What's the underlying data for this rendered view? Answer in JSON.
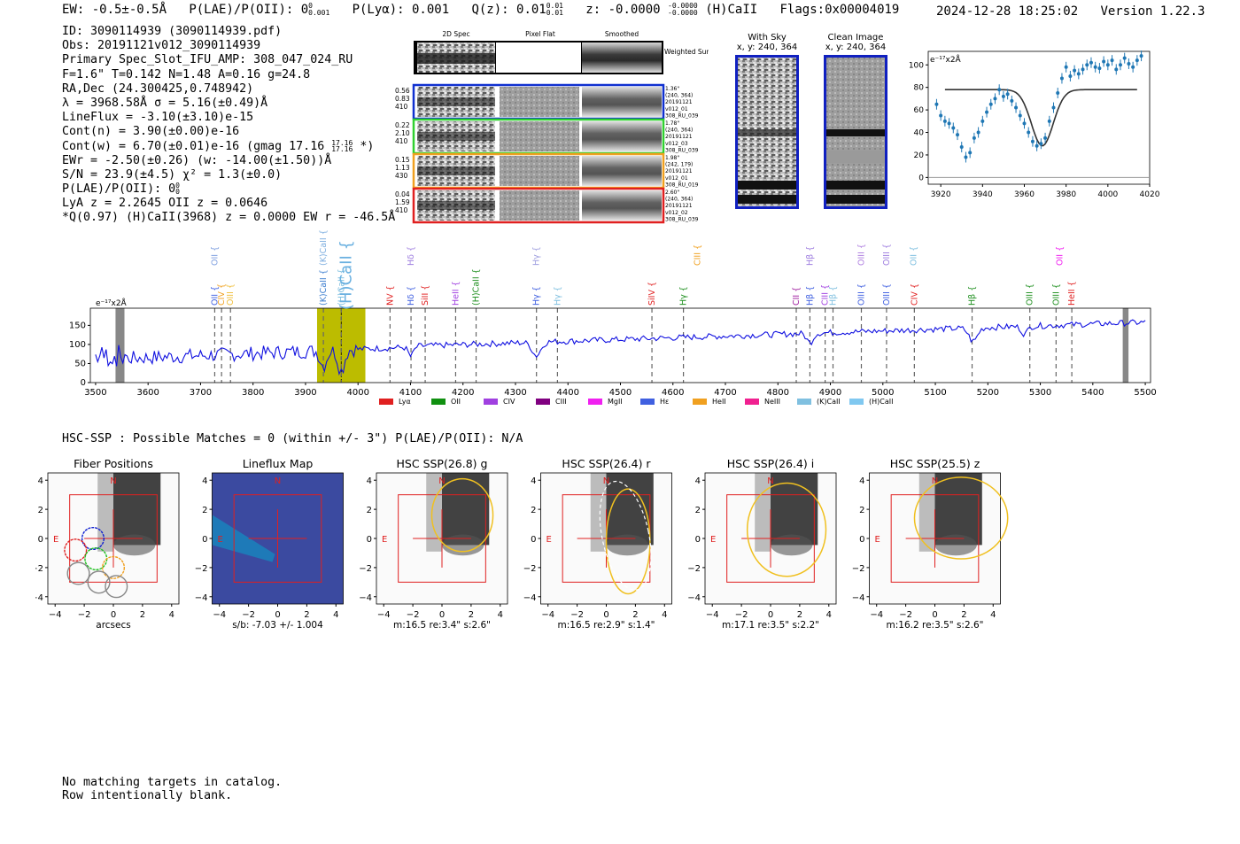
{
  "header": {
    "ew": "EW: -0.5±-0.5Å",
    "plae": "P(LAE)/P(OII): 0",
    "plae_sup": "0",
    "plae_sub": "0.001",
    "plya": "P(Lyα): 0.001",
    "qz": "Q(z): 0.01",
    "qz_sup": "0.01",
    "qz_sub": "0.01",
    "z": "z: -0.0000",
    "z_sup": "-0.0000",
    "z_sub": "-0.0000",
    "line": "(H)CaII",
    "flags": "Flags:0x00004019",
    "timestamp": "2024-12-28 18:25:02",
    "version": "Version 1.22.3"
  },
  "info": {
    "id": "ID: 3090114939 (3090114939.pdf)",
    "obs": "Obs: 20191121v012_3090114939",
    "spec": "Primary Spec_Slot_IFU_AMP: 308_047_024_RU",
    "fit": "F=1.6\"  T=0.142  N=1.48  A=0.16  g=24.8",
    "radec": "RA,Dec (24.300425,0.748942)",
    "lambda": "λ = 3968.58Å  σ = 5.16(±0.49)Å",
    "lineflux": "LineFlux = -3.10(±3.10)e-15",
    "contn": "Cont(n) = 3.90(±0.00)e-16",
    "contw": "Cont(w) = 6.70(±0.01)e-16 (gmag 17.16",
    "contw_sup": "17.16",
    "contw_sub": "17.16",
    "contw_end": "*)",
    "ewr": "EWr = -2.50(±0.26) (w: -14.00(±1.50))Å",
    "sn": "S/N = 23.9(±4.5)  χ² = 1.3(±0.0)",
    "plae": "P(LAE)/P(OII): 0",
    "plae_sup": "0",
    "plae_sub": "0",
    "lya": "LyA z = 2.2645  OII z = 0.0646",
    "q": "*Q(0.97) (H)CaII(3968) z = 0.0000  EW r = -46.5Å"
  },
  "stamps": {
    "col_titles": [
      "2D Spec",
      "Pixel Flat",
      "Smoothed"
    ],
    "weighted": "Weighted Sum",
    "rows": [
      {
        "left": [
          "0.56",
          "0.83",
          "410"
        ],
        "right": [
          "1.36\"",
          "(240, 364)",
          "20191121",
          "v012_01",
          "308_RU_039"
        ],
        "color": "#1030d0"
      },
      {
        "left": [
          "0.22",
          "2.10",
          "410"
        ],
        "right": [
          "1.78\"",
          "(240, 364)",
          "20191121",
          "v012_03",
          "308_RU_039"
        ],
        "color": "#30d030"
      },
      {
        "left": [
          "0.15",
          "1.13",
          "430"
        ],
        "right": [
          "1.98\"",
          "(242, 179)",
          "20191121",
          "v012_01",
          "308_RU_019"
        ],
        "color": "#f0a020"
      },
      {
        "left": [
          "0.04",
          "1.59",
          "410"
        ],
        "right": [
          "2.60\"",
          "(240, 364)",
          "20191121",
          "v012_02",
          "308_RU_039"
        ],
        "color": "#e02020"
      }
    ]
  },
  "cutouts": {
    "with_sky": "With Sky",
    "with_sky_xy": "x, y: 240, 364",
    "clean": "Clean Image",
    "clean_xy": "x, y: 240, 364"
  },
  "line_fit_chart": {
    "type": "scatter",
    "units_label": "e⁻¹⁷x2Å",
    "x": [
      3918,
      3920,
      3922,
      3924,
      3926,
      3928,
      3930,
      3932,
      3934,
      3936,
      3938,
      3940,
      3942,
      3944,
      3946,
      3948,
      3950,
      3952,
      3954,
      3956,
      3958,
      3960,
      3962,
      3964,
      3966,
      3968,
      3970,
      3972,
      3974,
      3976,
      3978,
      3980,
      3982,
      3984,
      3986,
      3988,
      3990,
      3992,
      3994,
      3996,
      3998,
      4000,
      4002,
      4004,
      4006,
      4008,
      4010,
      4012,
      4014,
      4016
    ],
    "y": [
      65,
      55,
      50,
      48,
      44,
      38,
      27,
      18,
      22,
      35,
      40,
      50,
      58,
      65,
      70,
      78,
      72,
      74,
      68,
      62,
      55,
      48,
      40,
      32,
      28,
      30,
      35,
      50,
      62,
      75,
      88,
      98,
      90,
      95,
      92,
      96,
      100,
      102,
      98,
      97,
      103,
      100,
      104,
      96,
      100,
      106,
      101,
      98,
      104,
      108
    ],
    "model": "gaussian",
    "xticks": [
      "3920",
      "3940",
      "3960",
      "3980",
      "4000",
      "4020"
    ],
    "yticks": [
      "0",
      "20",
      "40",
      "60",
      "80",
      "100"
    ],
    "xlim": [
      3914,
      4020
    ],
    "ylim": [
      -6,
      112
    ]
  },
  "spectrum_chart": {
    "type": "line",
    "units_label": "e⁻¹⁷x2Å",
    "xticks": [
      "3500",
      "3600",
      "3700",
      "3800",
      "3900",
      "4000",
      "4100",
      "4200",
      "4300",
      "4400",
      "4500",
      "4600",
      "4700",
      "4800",
      "4900",
      "5000",
      "5100",
      "5200",
      "5300",
      "5400",
      "5500"
    ],
    "yticks": [
      "0",
      "50",
      "100",
      "150"
    ],
    "xlim": [
      3490,
      5510
    ],
    "ylim": [
      0,
      195
    ],
    "highlight_range": [
      3922,
      4014
    ],
    "lines_top": [
      {
        "label": "OII",
        "x": 3727,
        "color": "#80a0e0"
      },
      {
        "label": "Hδ",
        "x": 4101,
        "color": "#a080e0"
      },
      {
        "label": "(K)CaII",
        "x": 3934,
        "color": "#80b0e0"
      },
      {
        "label": "(H)CaII",
        "x": 3968,
        "color": "#6ab0e0",
        "big": true
      },
      {
        "label": "Hγ",
        "x": 4340,
        "color": "#a0a0e0"
      },
      {
        "label": "CIII",
        "x": 4647,
        "color": "#f0a020"
      },
      {
        "label": "Hβ",
        "x": 4861,
        "color": "#a080e0"
      },
      {
        "label": "OIII",
        "x": 4959,
        "color": "#b080e0"
      },
      {
        "label": "OIII",
        "x": 5007,
        "color": "#a080e0"
      },
      {
        "label": "OII",
        "x": 5059,
        "color": "#80c0e0"
      },
      {
        "label": "OII",
        "x": 5337,
        "color": "#f020f0"
      }
    ],
    "lines_mid": [
      {
        "label": "OII",
        "x": 3727,
        "color": "#4060e0"
      },
      {
        "label": "CIV",
        "x": 3740,
        "color": "#f0a020"
      },
      {
        "label": "OIII",
        "x": 3757,
        "color": "#f0c040"
      },
      {
        "label": "(K)CaII",
        "x": 3934,
        "color": "#4080d0"
      },
      {
        "label": "(H)CaII",
        "x": 3968,
        "color": "#80c0e0"
      },
      {
        "label": "NV",
        "x": 4061,
        "color": "#e02020"
      },
      {
        "label": "Hδ",
        "x": 4101,
        "color": "#4060e0"
      },
      {
        "label": "SiII",
        "x": 4128,
        "color": "#e02020"
      },
      {
        "label": "HeII",
        "x": 4186,
        "color": "#a040e0"
      },
      {
        "label": "(H)CaII",
        "x": 4225,
        "color": "#209020"
      },
      {
        "label": "Hγ",
        "x": 4340,
        "color": "#4060e0"
      },
      {
        "label": "Hγ",
        "x": 4380,
        "color": "#80c0e0"
      },
      {
        "label": "SiIV",
        "x": 4560,
        "color": "#e02020"
      },
      {
        "label": "Hγ",
        "x": 4620,
        "color": "#209020"
      },
      {
        "label": "CII",
        "x": 4835,
        "color": "#a020a0"
      },
      {
        "label": "Hβ",
        "x": 4861,
        "color": "#4060e0"
      },
      {
        "label": "CIII",
        "x": 4890,
        "color": "#a040e0"
      },
      {
        "label": "Hβ",
        "x": 4905,
        "color": "#80c0e0"
      },
      {
        "label": "OIII",
        "x": 4959,
        "color": "#4060e0"
      },
      {
        "label": "OIII",
        "x": 5007,
        "color": "#4060e0"
      },
      {
        "label": "CIV",
        "x": 5060,
        "color": "#e02020"
      },
      {
        "label": "Hβ",
        "x": 5170,
        "color": "#209020"
      },
      {
        "label": "OIII",
        "x": 5280,
        "color": "#209020"
      },
      {
        "label": "OIII",
        "x": 5330,
        "color": "#209020"
      },
      {
        "label": "HeII",
        "x": 5360,
        "color": "#e02020"
      }
    ],
    "legend": [
      {
        "label": "Lyα",
        "color": "#e02020"
      },
      {
        "label": "OII",
        "color": "#109010"
      },
      {
        "label": "CIV",
        "color": "#a040e0"
      },
      {
        "label": "CIII",
        "color": "#800080"
      },
      {
        "label": "MgII",
        "color": "#f020f0"
      },
      {
        "label": "Hε",
        "color": "#4060e0"
      },
      {
        "label": "HeII",
        "color": "#f0a020"
      },
      {
        "label": "NeIII",
        "color": "#f02090"
      },
      {
        "label": "(K)CaII",
        "color": "#80c0e0"
      },
      {
        "label": "(H)CaII",
        "color": "#80c8f0"
      }
    ]
  },
  "hsc": {
    "summary": "HSC-SSP : Possible Matches = 0 (within +/- 3\")  P(LAE)/P(OII): N/A",
    "xticks": [
      "−4",
      "−2",
      "0",
      "2",
      "4"
    ],
    "yticks": [
      "4",
      "2",
      "0",
      "−2",
      "−4"
    ],
    "north": "N",
    "east": "E",
    "panels": [
      {
        "title": "Fiber Positions",
        "caption": "arcsecs"
      },
      {
        "title": "Lineflux Map",
        "caption": "s/b: -7.03 +/- 1.004"
      },
      {
        "title": "HSC SSP(26.8) g",
        "caption": "m:16.5  re:3.4\"  s:2.6\""
      },
      {
        "title": "HSC SSP(26.4) r",
        "caption": "m:16.5  re:2.9\"  s:1.4\""
      },
      {
        "title": "HSC SSP(26.4) i",
        "caption": "m:17.1  re:3.5\"  s:2.2\""
      },
      {
        "title": "HSC SSP(25.5) z",
        "caption": "m:16.2  re:3.5\"  s:2.6\""
      }
    ]
  },
  "footer": {
    "line1": "No matching targets in catalog.",
    "line2": "Row intentionally blank."
  }
}
